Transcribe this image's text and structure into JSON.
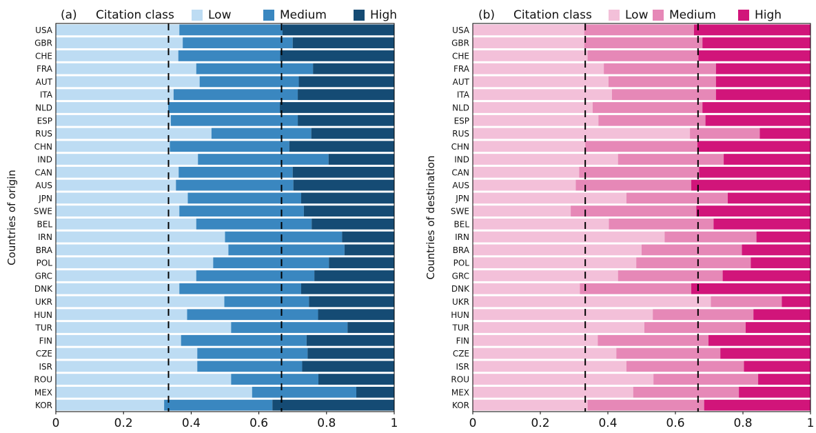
{
  "chart_data": [
    {
      "type": "bar",
      "orientation": "horizontal",
      "stacked": true,
      "panel_label": "(a)",
      "legend_title": "Citation class",
      "legend_position": "top",
      "ylabel": "Countries of origin",
      "xlabel": "",
      "xlim": [
        0,
        1
      ],
      "xticks": [
        "0",
        "0.2",
        "0.4",
        "0.6",
        "0.8",
        "1"
      ],
      "reference_lines": [
        0.333,
        0.667
      ],
      "grid": false,
      "categories": [
        "USA",
        "GBR",
        "CHE",
        "FRA",
        "AUT",
        "ITA",
        "NLD",
        "ESP",
        "RUS",
        "CHN",
        "IND",
        "CAN",
        "AUS",
        "JPN",
        "SWE",
        "BEL",
        "IRN",
        "BRA",
        "POL",
        "GRC",
        "DNK",
        "UKR",
        "HUN",
        "TUR",
        "FIN",
        "CZE",
        "ISR",
        "ROU",
        "MEX",
        "KOR"
      ],
      "series": [
        {
          "name": "Low",
          "color": "#bddcf3",
          "values": [
            0.365,
            0.375,
            0.362,
            0.415,
            0.425,
            0.348,
            0.332,
            0.34,
            0.46,
            0.337,
            0.42,
            0.363,
            0.355,
            0.39,
            0.365,
            0.415,
            0.5,
            0.51,
            0.465,
            0.415,
            0.365,
            0.498,
            0.388,
            0.518,
            0.37,
            0.418,
            0.418,
            0.518,
            0.58,
            0.32
          ]
        },
        {
          "name": "Medium",
          "color": "#3a87c0",
          "values": [
            0.305,
            0.325,
            0.301,
            0.345,
            0.293,
            0.367,
            0.33,
            0.375,
            0.295,
            0.353,
            0.386,
            0.337,
            0.347,
            0.335,
            0.368,
            0.341,
            0.346,
            0.343,
            0.342,
            0.349,
            0.36,
            0.25,
            0.387,
            0.344,
            0.371,
            0.326,
            0.31,
            0.258,
            0.308,
            0.32
          ]
        },
        {
          "name": "High",
          "color": "#154b74",
          "values": [
            0.33,
            0.3,
            0.337,
            0.24,
            0.282,
            0.285,
            0.338,
            0.285,
            0.245,
            0.31,
            0.194,
            0.3,
            0.298,
            0.275,
            0.267,
            0.244,
            0.154,
            0.147,
            0.193,
            0.236,
            0.275,
            0.252,
            0.225,
            0.138,
            0.259,
            0.256,
            0.272,
            0.224,
            0.112,
            0.36
          ]
        }
      ]
    },
    {
      "type": "bar",
      "orientation": "horizontal",
      "stacked": true,
      "panel_label": "(b)",
      "legend_title": "Citation class",
      "legend_position": "top",
      "ylabel": "Countries of destination",
      "xlabel": "",
      "xlim": [
        0,
        1
      ],
      "xticks": [
        "0",
        "0.2",
        "0.4",
        "0.6",
        "0.8",
        "1"
      ],
      "reference_lines": [
        0.333,
        0.667
      ],
      "grid": false,
      "categories": [
        "USA",
        "GBR",
        "CHE",
        "FRA",
        "AUT",
        "ITA",
        "NLD",
        "ESP",
        "RUS",
        "CHN",
        "IND",
        "CAN",
        "AUS",
        "JPN",
        "SWE",
        "BEL",
        "IRN",
        "BRA",
        "POL",
        "GRC",
        "DNK",
        "UKR",
        "HUN",
        "TUR",
        "FIN",
        "CZE",
        "ISR",
        "ROU",
        "MEX",
        "KOR"
      ],
      "series": [
        {
          "name": "Low",
          "color": "#f3c0d9",
          "values": [
            0.33,
            0.33,
            0.34,
            0.388,
            0.402,
            0.412,
            0.355,
            0.372,
            0.643,
            0.333,
            0.43,
            0.315,
            0.305,
            0.455,
            0.29,
            0.403,
            0.568,
            0.5,
            0.484,
            0.43,
            0.317,
            0.705,
            0.533,
            0.508,
            0.37,
            0.425,
            0.455,
            0.535,
            0.475,
            0.34
          ]
        },
        {
          "name": "Medium",
          "color": "#e688b7",
          "values": [
            0.325,
            0.35,
            0.328,
            0.332,
            0.318,
            0.308,
            0.325,
            0.317,
            0.207,
            0.332,
            0.313,
            0.355,
            0.342,
            0.3,
            0.372,
            0.31,
            0.272,
            0.297,
            0.339,
            0.31,
            0.33,
            0.21,
            0.298,
            0.3,
            0.328,
            0.308,
            0.348,
            0.31,
            0.313,
            0.345
          ]
        },
        {
          "name": "High",
          "color": "#d1157a",
          "values": [
            0.345,
            0.32,
            0.332,
            0.28,
            0.28,
            0.28,
            0.32,
            0.311,
            0.15,
            0.335,
            0.257,
            0.33,
            0.353,
            0.245,
            0.338,
            0.287,
            0.16,
            0.203,
            0.177,
            0.26,
            0.353,
            0.085,
            0.169,
            0.192,
            0.302,
            0.267,
            0.197,
            0.155,
            0.212,
            0.315
          ]
        }
      ]
    }
  ]
}
